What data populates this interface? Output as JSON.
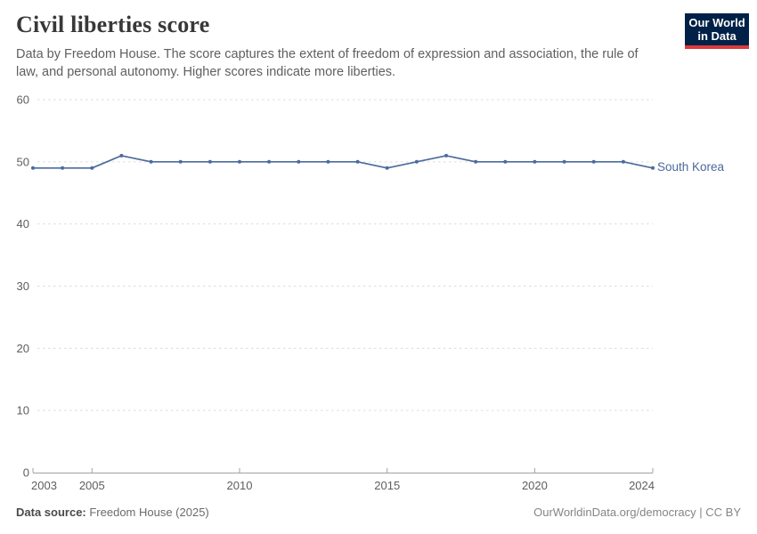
{
  "header": {
    "title": "Civil liberties score",
    "subtitle": "Data by Freedom House. The score captures the extent of freedom of expression and association, the rule of law, and personal autonomy. Higher scores indicate more liberties.",
    "logo": {
      "line1": "Our World",
      "line2": "in Data",
      "bg_color": "#002147",
      "accent_color": "#dc3a3d"
    }
  },
  "chart_data": {
    "type": "line",
    "title": "Civil liberties score",
    "xlabel": "",
    "ylabel": "",
    "xlim": [
      2003,
      2024
    ],
    "ylim": [
      0,
      60
    ],
    "yticks": [
      0,
      10,
      20,
      30,
      40,
      50,
      60
    ],
    "xticks": [
      2003,
      2005,
      2010,
      2015,
      2020,
      2024
    ],
    "grid": "horizontal-dashed",
    "legend_position": "end-of-line",
    "x": [
      2003,
      2004,
      2005,
      2006,
      2007,
      2008,
      2009,
      2010,
      2011,
      2012,
      2013,
      2014,
      2015,
      2016,
      2017,
      2018,
      2019,
      2020,
      2021,
      2022,
      2023,
      2024
    ],
    "series": [
      {
        "name": "South Korea",
        "color": "#4c6a9c",
        "values": [
          49,
          49,
          49,
          51,
          50,
          50,
          50,
          50,
          50,
          50,
          50,
          50,
          49,
          50,
          51,
          50,
          50,
          50,
          50,
          50,
          50,
          49
        ]
      }
    ]
  },
  "footer": {
    "source_label": "Data source:",
    "source_value": " Freedom House (2025)",
    "right_text": "OurWorldinData.org/democracy | CC BY"
  },
  "colors": {
    "line": "#4c6a9c",
    "gridline": "#dcdcdc",
    "axis": "#a1a1a1",
    "tick_label": "#5e5e5e",
    "title": "#383838",
    "subtitle": "#5f5f5f"
  }
}
